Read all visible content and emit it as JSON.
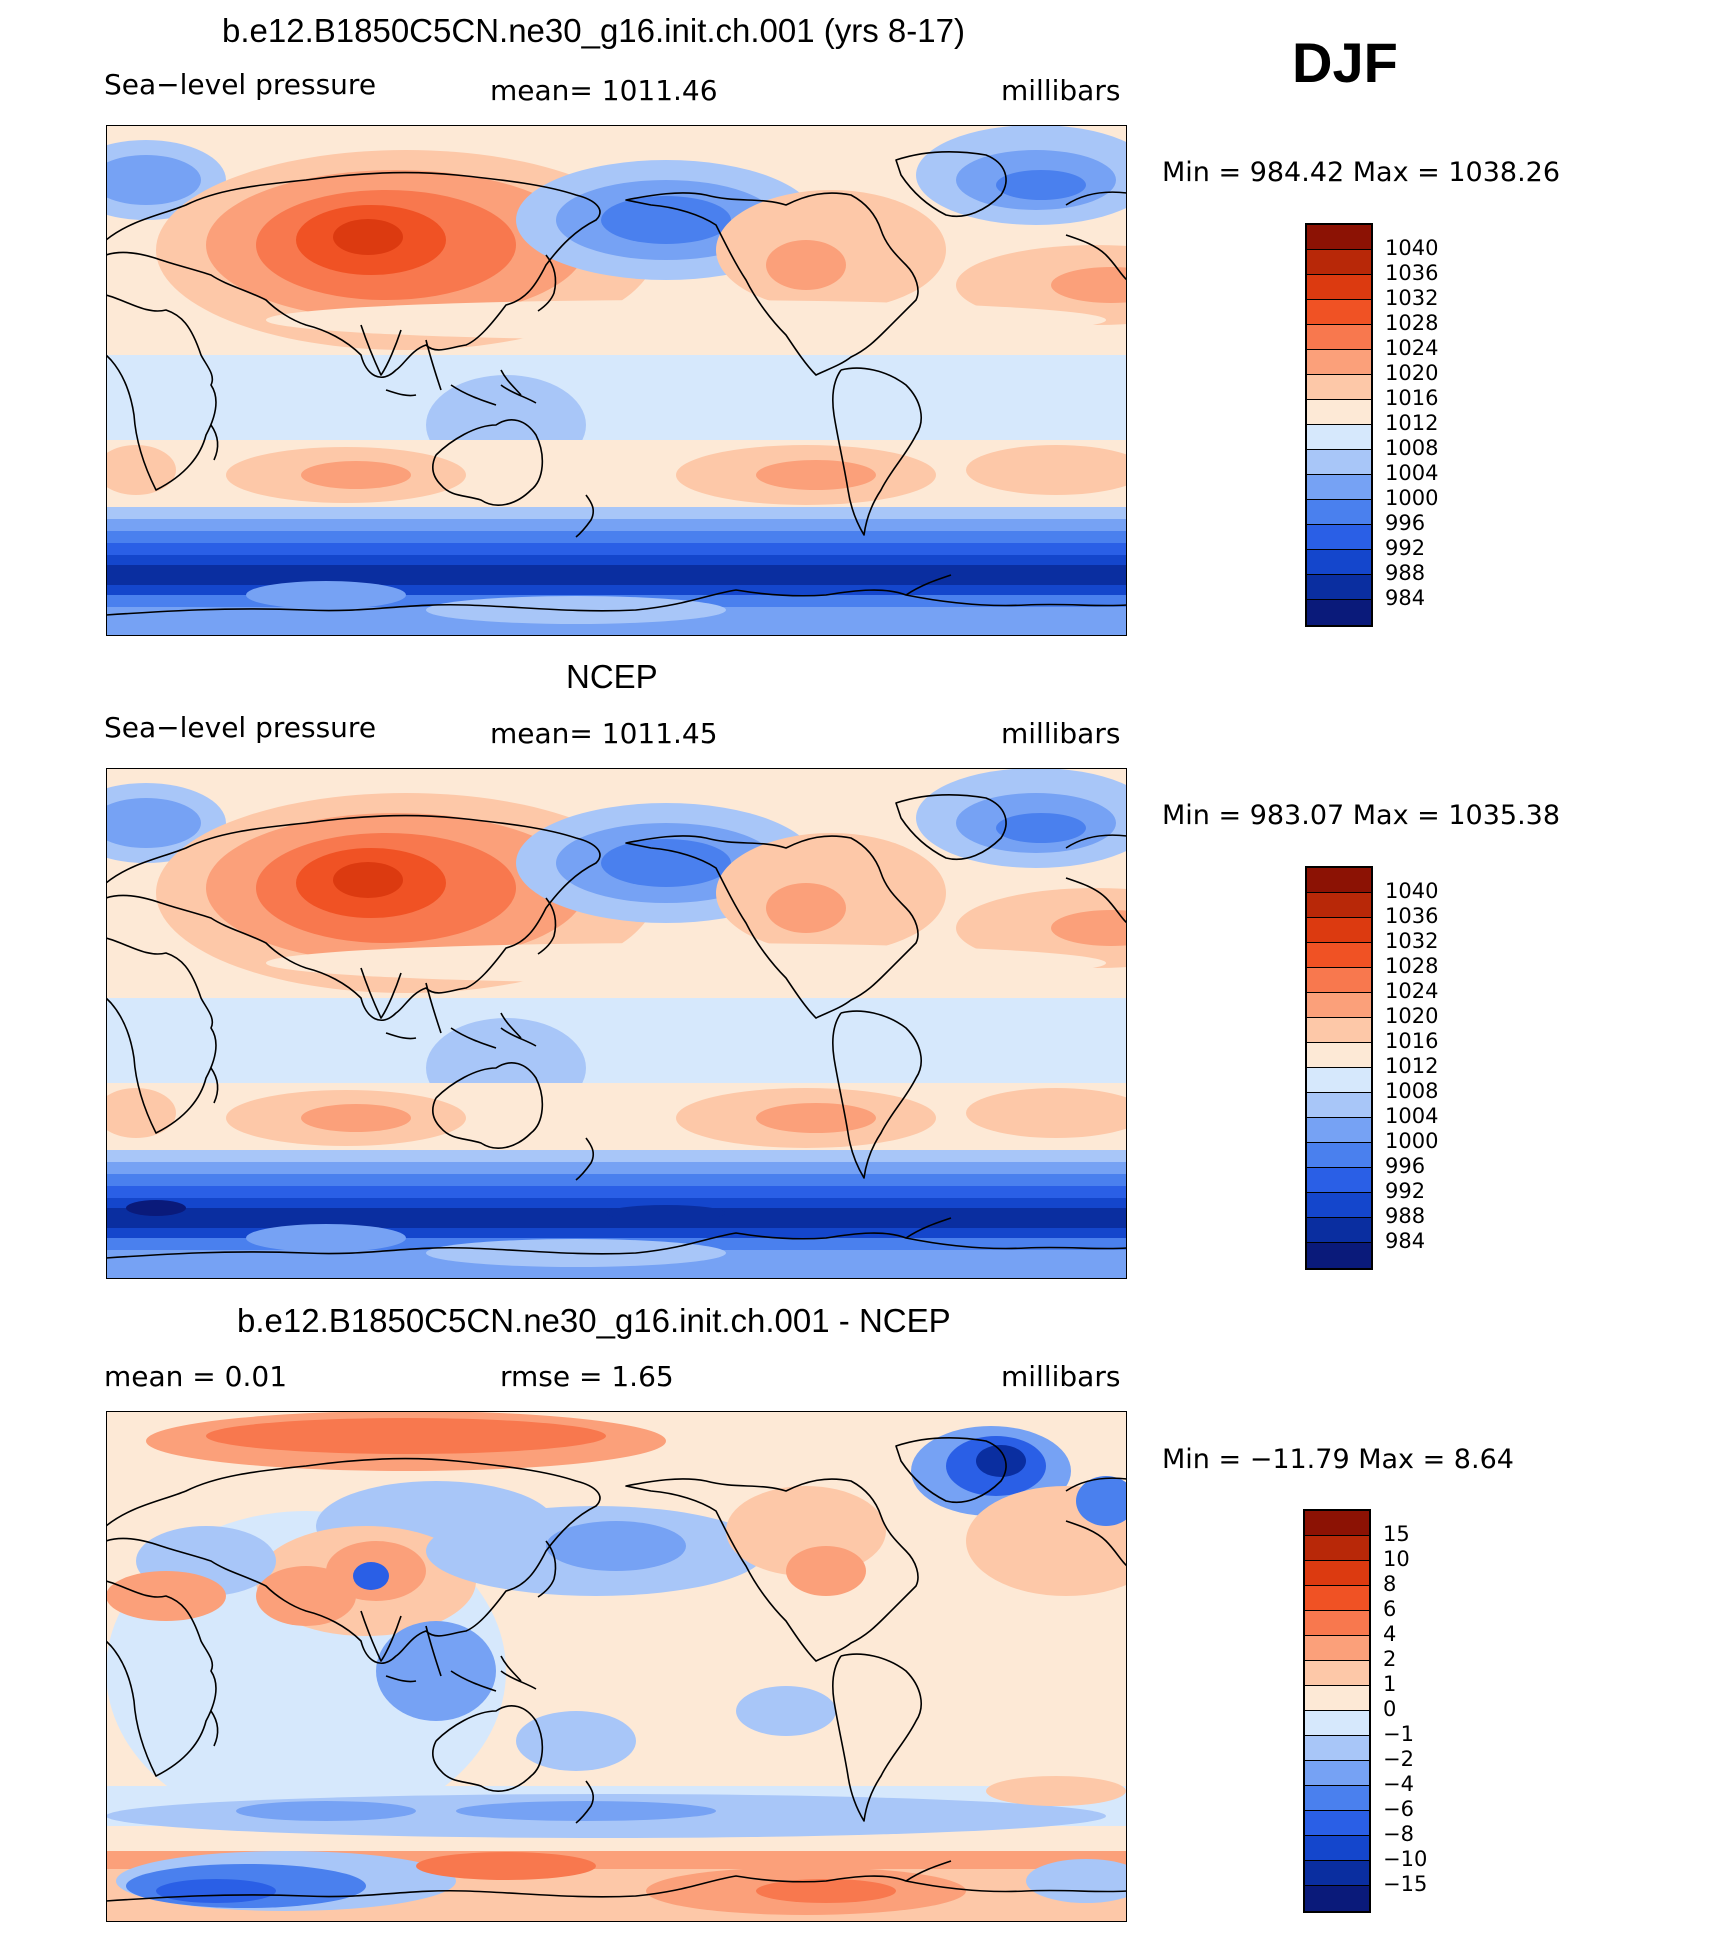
{
  "season": "DJF",
  "colors": {
    "c_neg8": "#0a1a7a",
    "c_neg7": "#0a2ea0",
    "c_neg6": "#1446cc",
    "c_neg5": "#2a5fe6",
    "c_neg4": "#4a80ee",
    "c_neg3": "#76a2f4",
    "c_neg2": "#a8c6f8",
    "c_neg1": "#d6e8fc",
    "c_pos1": "#fde9d6",
    "c_pos2": "#fdc8a8",
    "c_pos3": "#fba07a",
    "c_pos4": "#f8784e",
    "c_pos5": "#f05224",
    "c_pos6": "#dc3a10",
    "c_pos7": "#b82808",
    "c_pos8": "#8c1204"
  },
  "panels": [
    {
      "title": "b.e12.B1850C5CN.ne30_g16.init.ch.001 (yrs 8-17)",
      "left": "Sea−level pressure",
      "center": "mean=  1011.46",
      "right": "millibars",
      "minmax": "Min  =  984.42  Max  =  1038.26",
      "field": "model",
      "colorbar": [
        "1040",
        "1036",
        "1032",
        "1028",
        "1024",
        "1020",
        "1016",
        "1012",
        "1008",
        "1004",
        "1000",
        "996",
        "992",
        "988",
        "984"
      ]
    },
    {
      "title": "NCEP",
      "left": "Sea−level pressure",
      "center": "mean=  1011.45",
      "right": "millibars",
      "minmax": "Min  =  983.07  Max  =  1035.38",
      "field": "obs",
      "colorbar": [
        "1040",
        "1036",
        "1032",
        "1028",
        "1024",
        "1020",
        "1016",
        "1012",
        "1008",
        "1004",
        "1000",
        "996",
        "992",
        "988",
        "984"
      ]
    },
    {
      "title": "b.e12.B1850C5CN.ne30_g16.init.ch.001 - NCEP",
      "left": "mean  =      0.01",
      "center": "rmse  =      1.65",
      "right": "millibars",
      "minmax": "Min  =  −11.79  Max  =      8.64",
      "field": "diff",
      "colorbar": [
        "15",
        "10",
        "8",
        "6",
        "4",
        "2",
        "1",
        "0",
        "−1",
        "−2",
        "−4",
        "−6",
        "−8",
        "−10",
        "−15"
      ]
    }
  ]
}
